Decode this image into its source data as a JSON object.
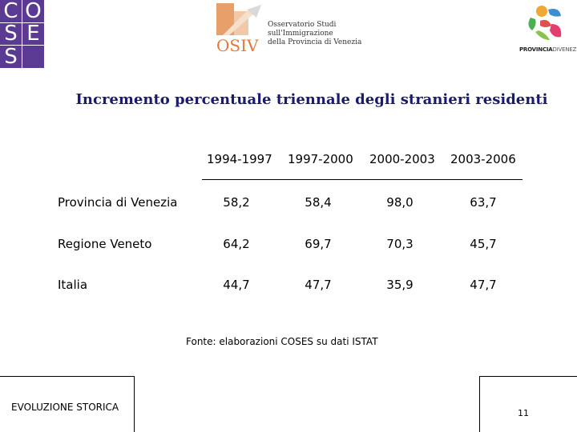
{
  "logos": {
    "coses_letters": [
      "C",
      "O",
      "S",
      "E",
      "S",
      ""
    ],
    "osiv": {
      "initials": "OSIV",
      "lines": [
        "Osservatorio Studi",
        "sull'Immigrazione",
        "della Provincia di Venezia"
      ]
    },
    "provincia": {
      "bold": "PROVINCIA",
      "light": "DIVENEZIA"
    }
  },
  "title": "Incremento percentuale triennale degli stranieri residenti",
  "table": {
    "columns": [
      "1994-1997",
      "1997-2000",
      "2000-2003",
      "2003-2006"
    ],
    "rows": [
      {
        "label": "Provincia di Venezia",
        "values": [
          "58,2",
          "58,4",
          "98,0",
          "63,7"
        ]
      },
      {
        "label": "Regione Veneto",
        "values": [
          "64,2",
          "69,7",
          "70,3",
          "45,7"
        ]
      },
      {
        "label": "Italia",
        "values": [
          "44,7",
          "47,7",
          "35,9",
          "47,7"
        ]
      }
    ]
  },
  "source": "Fonte: elaborazioni COSES su dati ISTAT",
  "footer": {
    "section": "EVOLUZIONE STORICA",
    "page": "11"
  },
  "colors": {
    "title": "#1a1a6e",
    "coses_purple": "#5b3a93",
    "osiv_orange": "#e07a3a"
  }
}
